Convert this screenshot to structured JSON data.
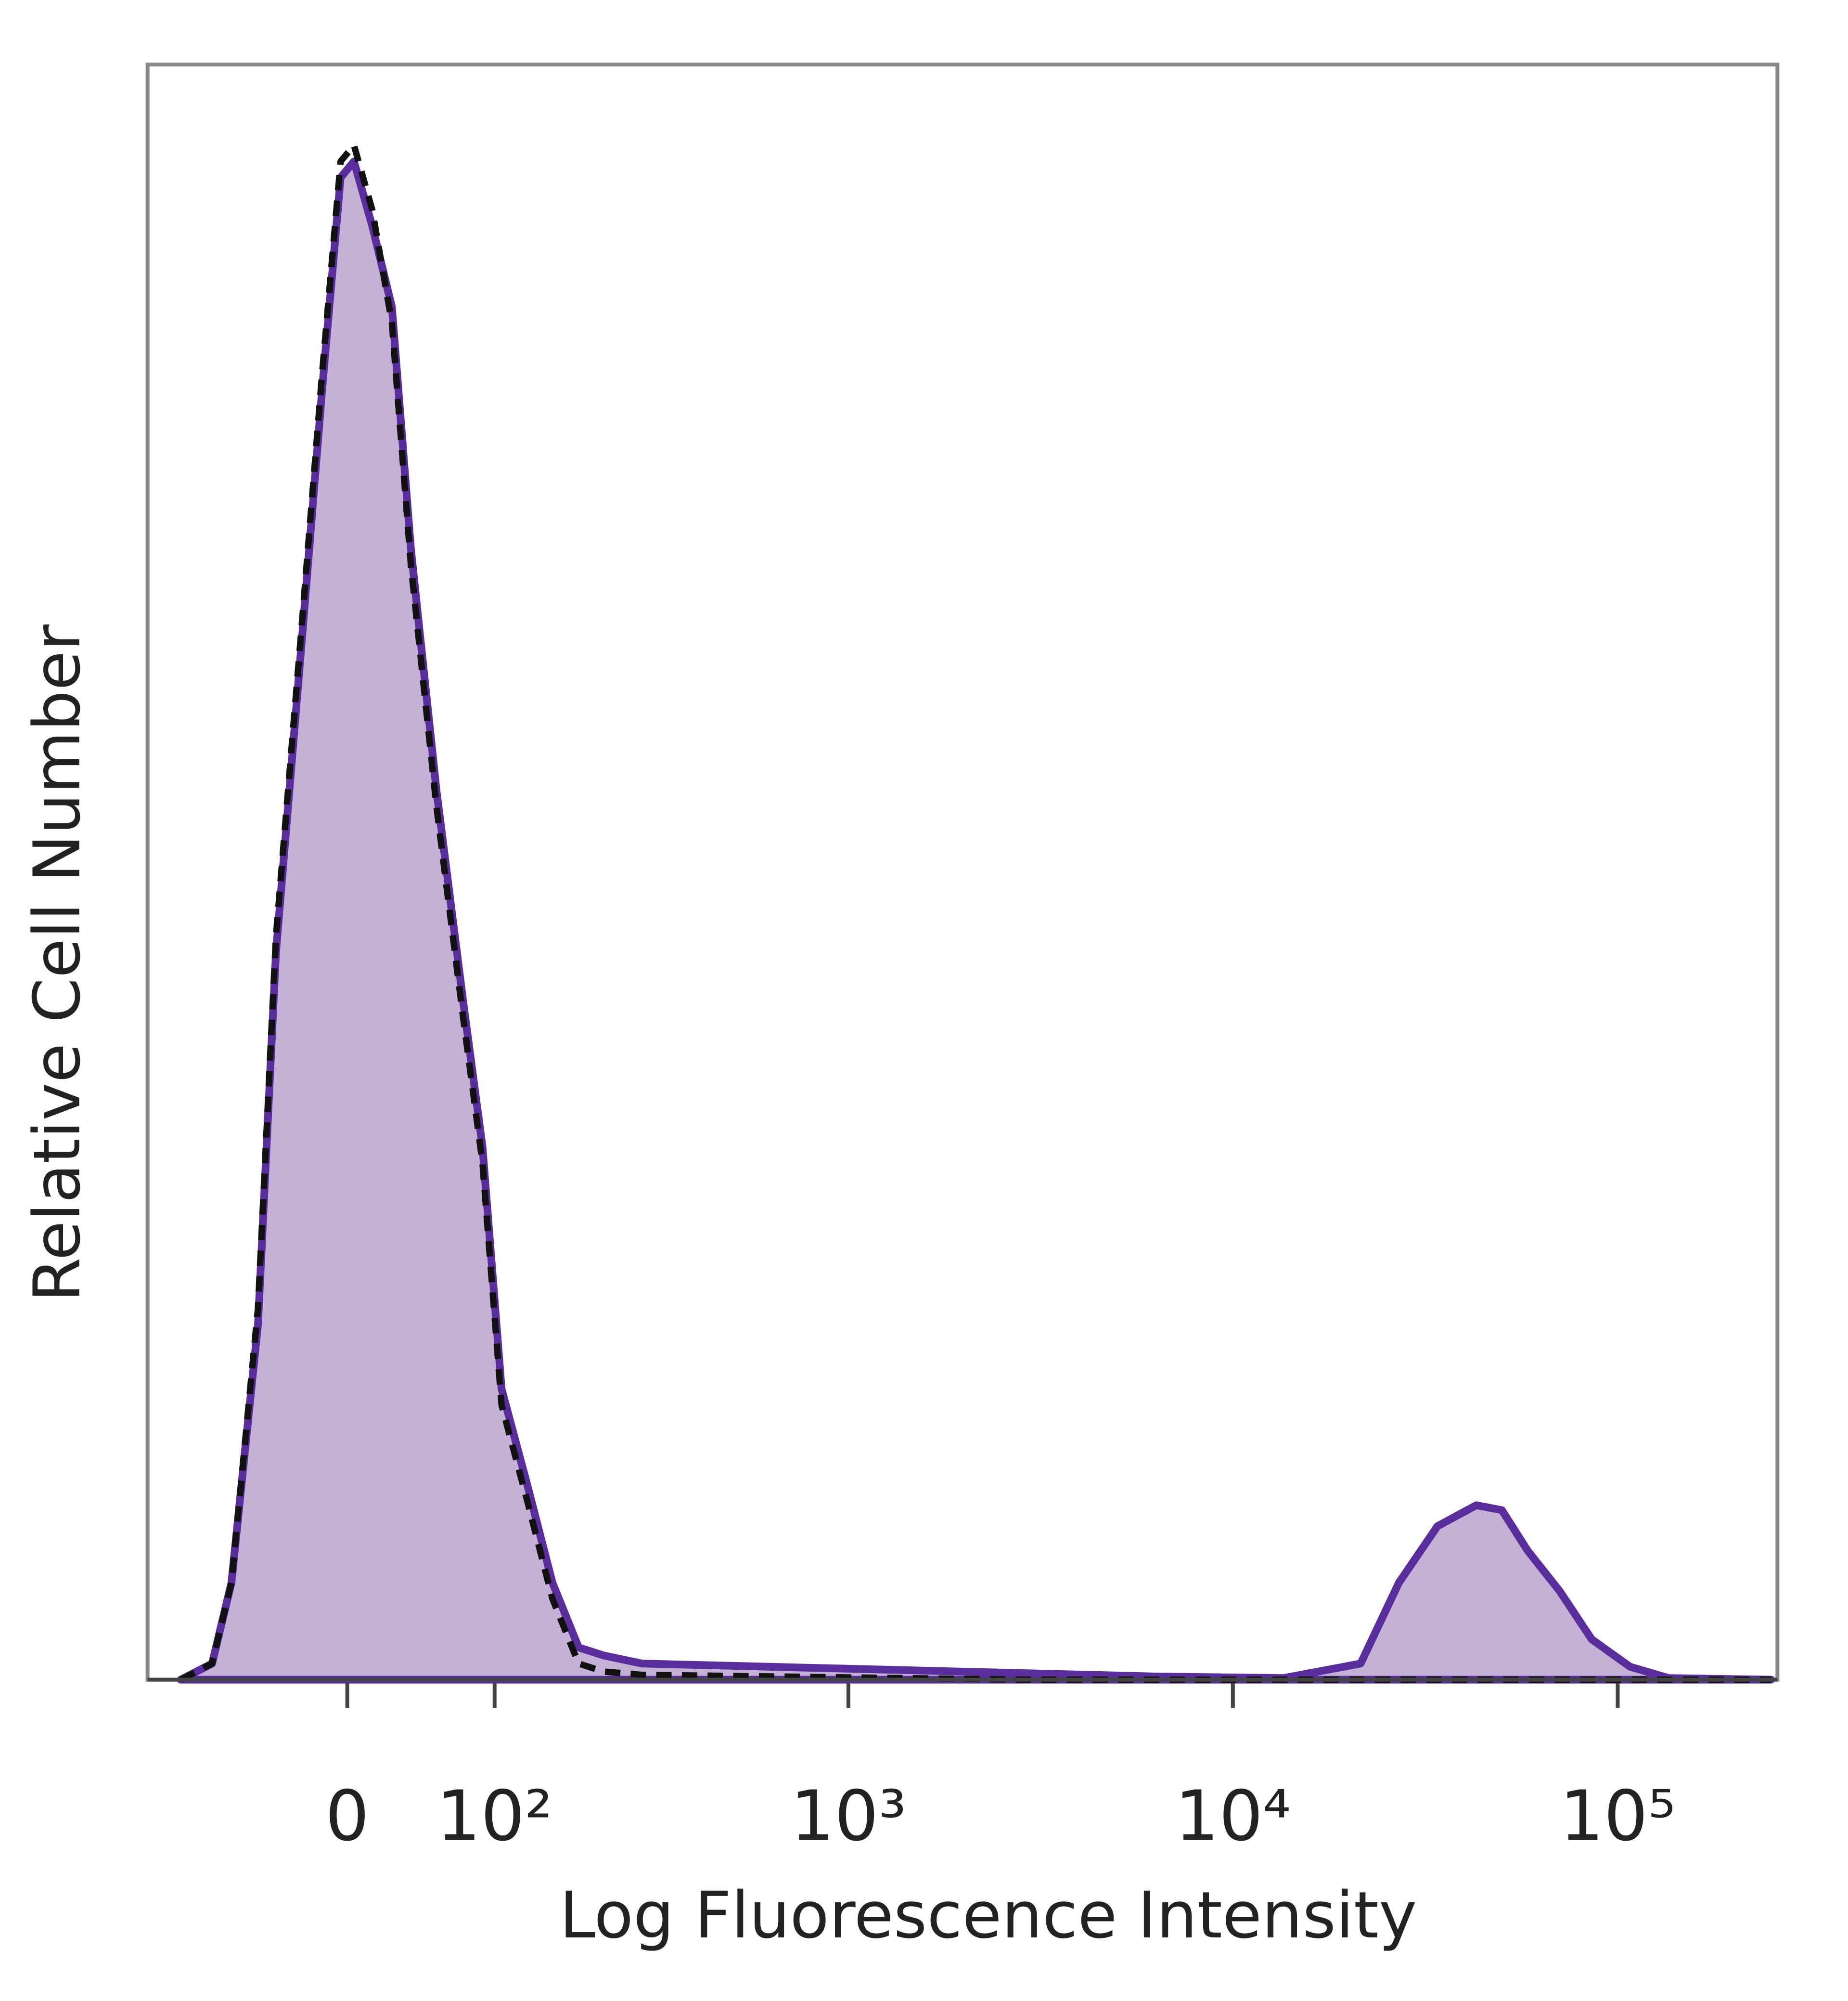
{
  "chart_data": {
    "type": "histogram-overlay",
    "x_label": "Log Fluorescence Intensity",
    "y_label": "Relative Cell Number",
    "xscale": "biexponential",
    "xlim": [
      -150,
      260000
    ],
    "ylim": [
      0,
      100
    ],
    "xticks": [
      {
        "value": 0,
        "label": "0"
      },
      {
        "value": 100,
        "label": "10²"
      },
      {
        "value": 1000,
        "label": "10³"
      },
      {
        "value": 10000,
        "label": "10⁴"
      },
      {
        "value": 100000,
        "label": "10⁵"
      }
    ],
    "x": [
      -117,
      -90,
      -75,
      -56,
      -44,
      -27,
      -15,
      -4,
      4,
      15,
      27,
      39,
      56,
      75,
      90,
      106,
      130,
      156,
      187,
      221,
      283,
      626,
      1354,
      2920,
      6290,
      13540,
      21480,
      27000,
      34000,
      42900,
      50000,
      58300,
      70600,
      85600,
      107700,
      135700,
      250400
    ],
    "series": [
      {
        "color": "#5a2d9c",
        "fill": "#c6b1d6",
        "dash": false,
        "values": [
          0,
          1,
          6,
          22,
          45,
          65,
          80,
          93,
          94,
          90,
          85,
          70,
          55,
          42,
          33,
          18,
          12,
          6,
          2,
          1.5,
          1,
          0.8,
          0.6,
          0.4,
          0.2,
          0.1,
          1,
          6,
          9.5,
          10.8,
          10.5,
          8,
          5.5,
          2.5,
          0.8,
          0.1,
          0
        ]
      },
      {
        "color": "#111111",
        "fill": "none",
        "dash": true,
        "values": [
          0,
          1,
          6,
          23,
          46,
          66,
          81,
          94,
          95,
          91,
          84,
          69,
          54,
          41,
          32,
          17,
          11,
          5,
          1,
          0.5,
          0.3,
          0.2,
          0.1,
          0,
          0,
          0,
          0,
          0,
          0,
          0,
          0,
          0,
          0,
          0,
          0,
          0,
          0
        ]
      }
    ]
  }
}
